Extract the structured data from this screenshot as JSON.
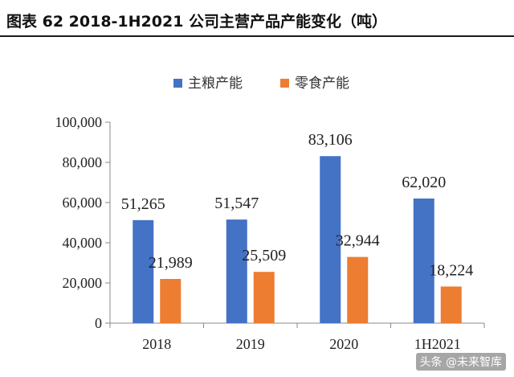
{
  "title": "图表 62 2018-1H2021 公司主营产品产能变化（吨）",
  "watermark": "头条 @未来智库",
  "colors": {
    "series_0": "#4472C4",
    "series_1": "#ED7D31",
    "axis": "#888888"
  },
  "chart_data": {
    "type": "bar",
    "categories": [
      "2018",
      "2019",
      "2020",
      "1H2021"
    ],
    "series": [
      {
        "name": "主粮产能",
        "values": [
          51265,
          51547,
          83106,
          62020
        ],
        "labels": [
          "51,265",
          "51,547",
          "83,106",
          "62,020"
        ]
      },
      {
        "name": "零食产能",
        "values": [
          21989,
          25509,
          32944,
          18224
        ],
        "labels": [
          "21,989",
          "25,509",
          "32,944",
          "18,224"
        ]
      }
    ],
    "ylim": [
      0,
      100000
    ],
    "yticks": [
      0,
      20000,
      40000,
      60000,
      80000,
      100000
    ],
    "ytick_labels": [
      "0",
      "20,000",
      "40,000",
      "60,000",
      "80,000",
      "100,000"
    ],
    "legend": "top",
    "grid": false
  }
}
